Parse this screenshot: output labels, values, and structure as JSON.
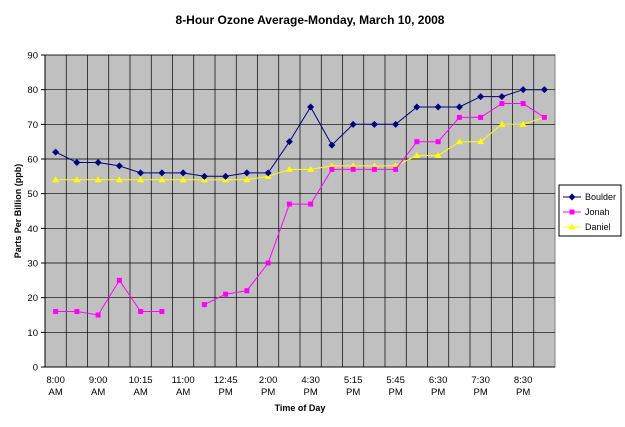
{
  "chart_data": {
    "type": "line",
    "title": "8-Hour Ozone Average-Monday, March 10, 2008",
    "xlabel": "Time of Day",
    "ylabel": "Parts Per Billion (ppb)",
    "ylim": [
      0,
      90
    ],
    "yticks": [
      0,
      10,
      20,
      30,
      40,
      50,
      60,
      70,
      80,
      90
    ],
    "grid": true,
    "legend_position": "right",
    "x_tick_labels": [
      [
        "8:00",
        "AM"
      ],
      [
        "9:00",
        "AM"
      ],
      [
        "10:15",
        "AM"
      ],
      [
        "11:00",
        "AM"
      ],
      [
        "12:45",
        "PM"
      ],
      [
        "2:00",
        "PM"
      ],
      [
        "4:30",
        "PM"
      ],
      [
        "5:15",
        "PM"
      ],
      [
        "5:45",
        "PM"
      ],
      [
        "6:30",
        "PM"
      ],
      [
        "7:30",
        "PM"
      ],
      [
        "8:30",
        "PM"
      ]
    ],
    "series": [
      {
        "name": "Boulder",
        "color": "#000080",
        "marker": "diamond",
        "values": [
          62,
          59,
          59,
          58,
          56,
          56,
          56,
          55,
          55,
          56,
          56,
          65,
          75,
          64,
          70,
          70,
          70,
          75,
          75,
          75,
          78,
          78,
          80,
          80
        ]
      },
      {
        "name": "Jonah",
        "color": "#ff00ff",
        "marker": "square",
        "values": [
          16,
          16,
          15,
          25,
          16,
          16,
          null,
          18,
          21,
          22,
          30,
          47,
          47,
          57,
          57,
          57,
          57,
          65,
          65,
          72,
          72,
          76,
          76,
          72
        ]
      },
      {
        "name": "Daniel",
        "color": "#ffff00",
        "marker": "triangle",
        "values": [
          54,
          54,
          54,
          54,
          54,
          54,
          54,
          54,
          54,
          54,
          55,
          57,
          57,
          58,
          58,
          58,
          58,
          61,
          61,
          65,
          65,
          70,
          70,
          72
        ]
      }
    ]
  }
}
